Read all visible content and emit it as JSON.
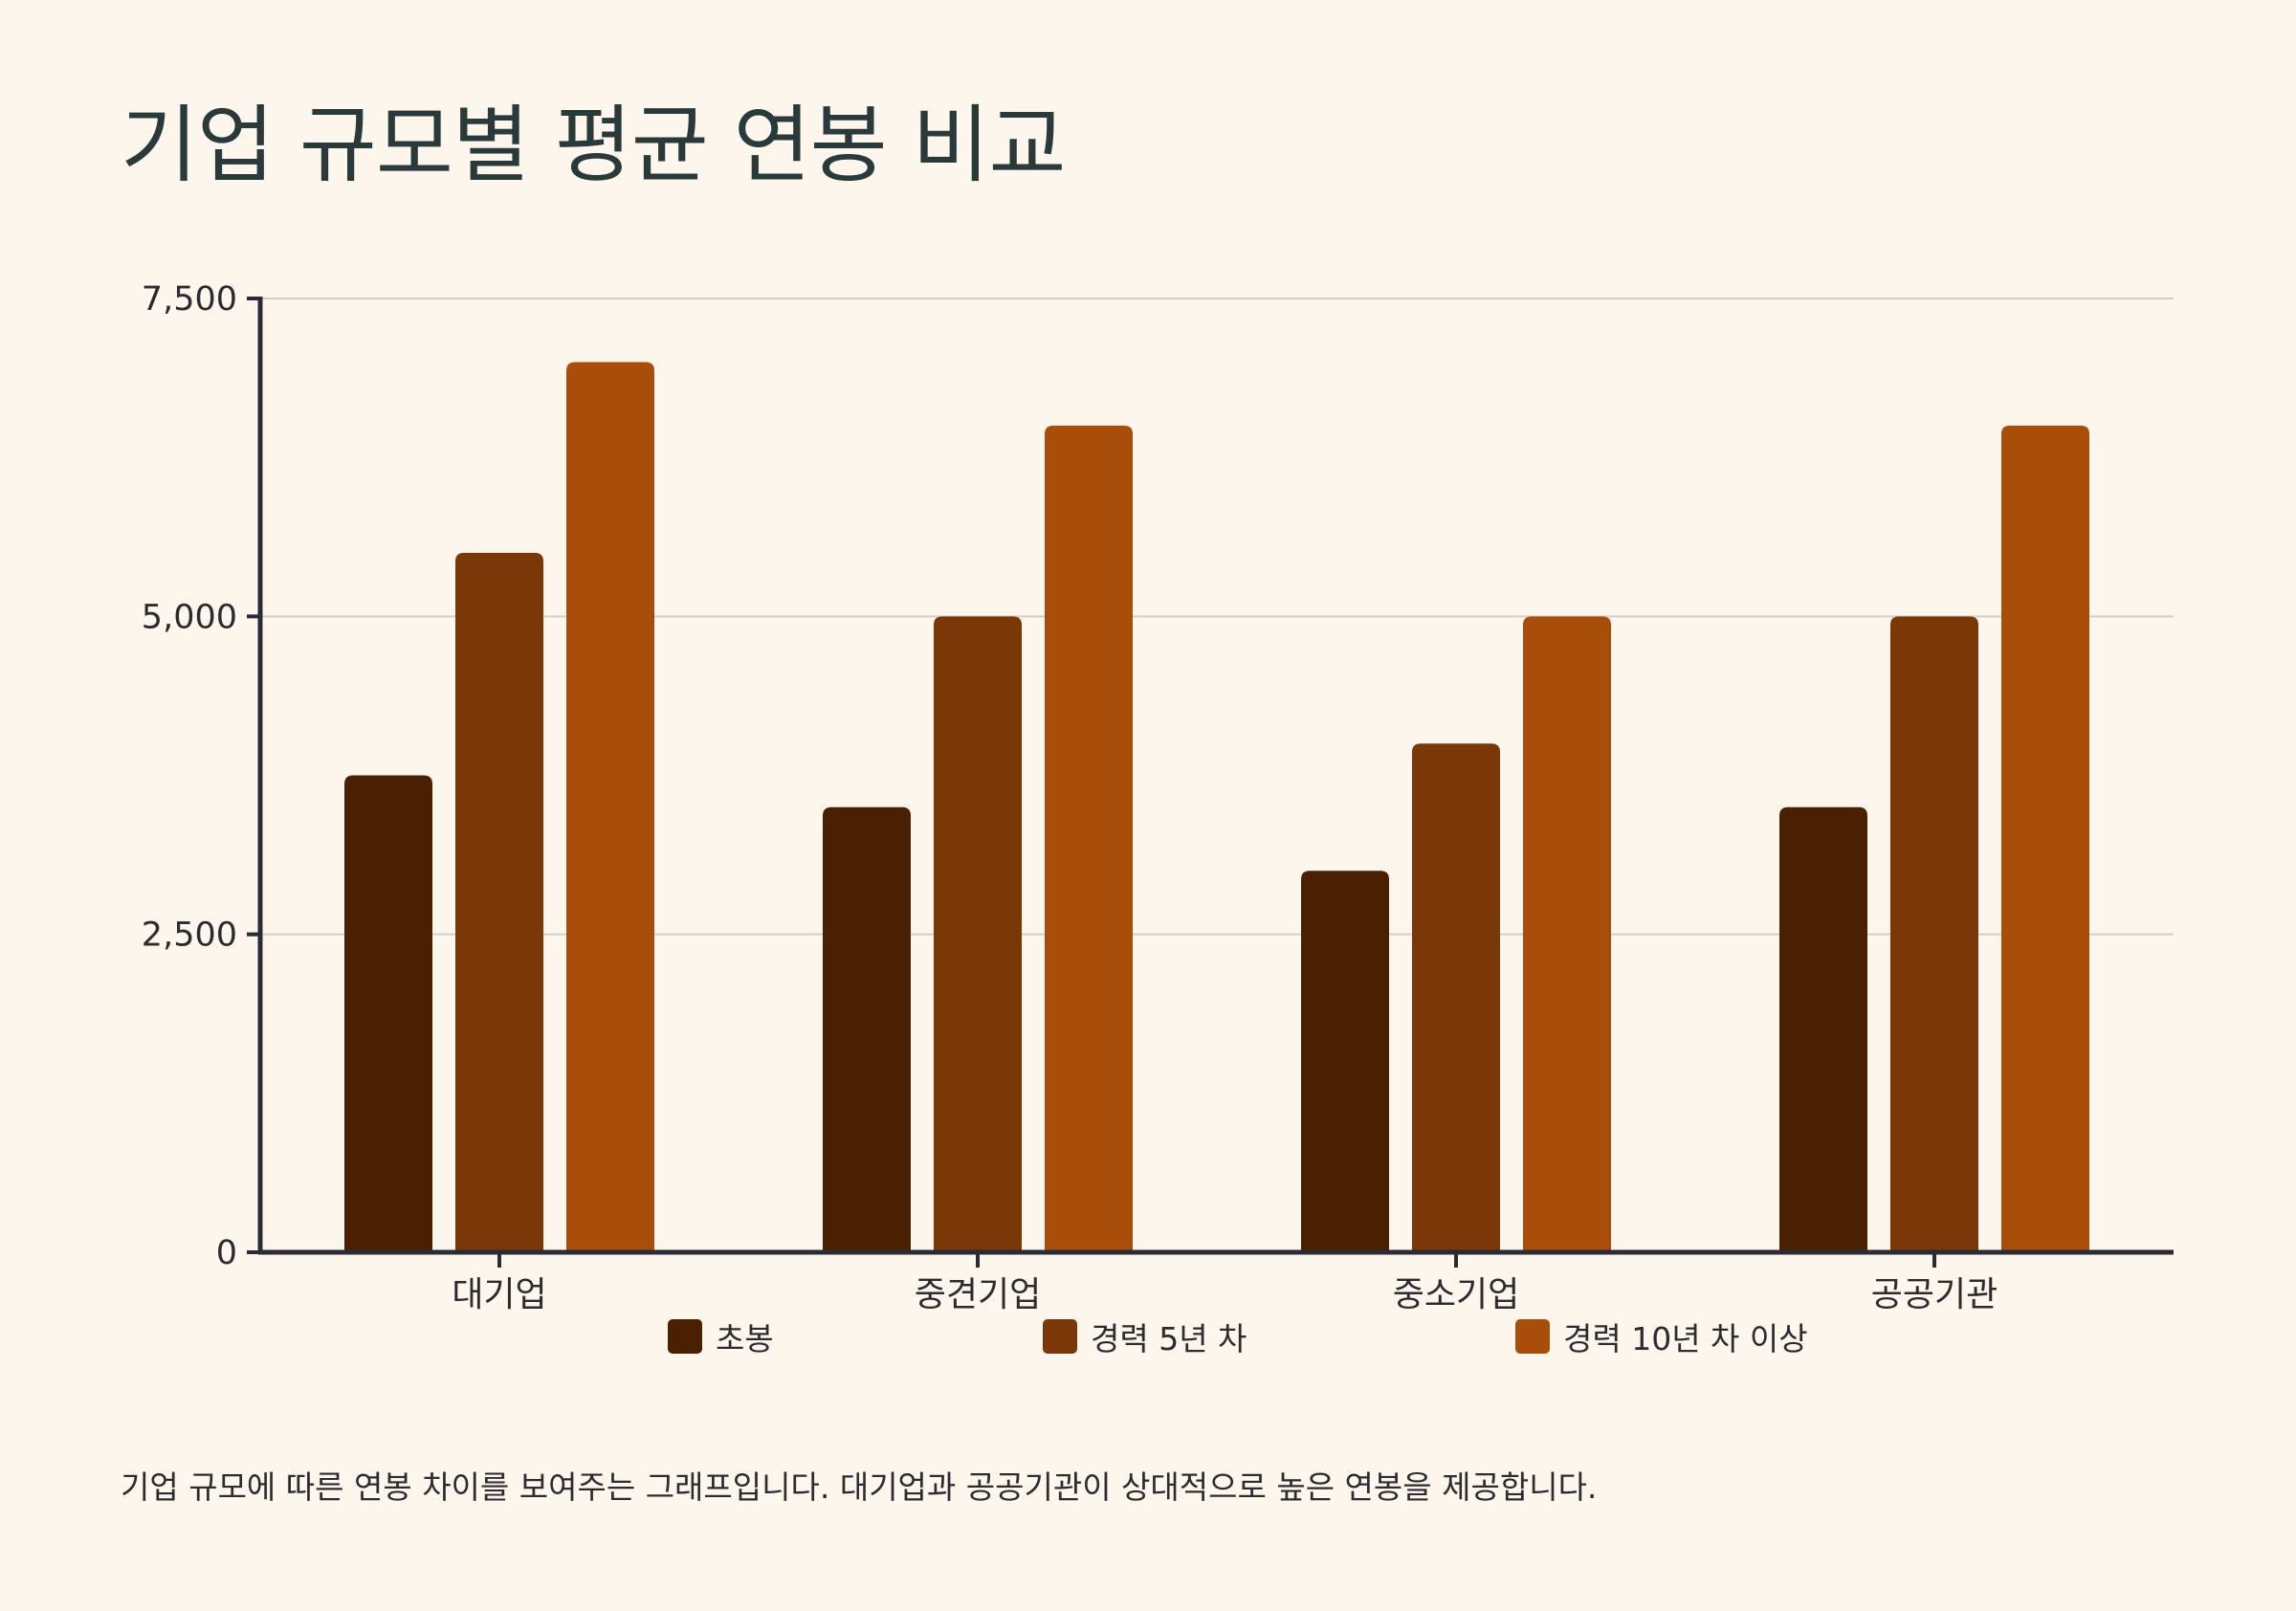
{
  "page": {
    "background": "#fdf6ec",
    "caption": "기업 규모에 따른 연봉 차이를 보여주는 그래프입니다. 대기업과 공공기관이 상대적으로 높은 연봉을 제공합니다."
  },
  "chart_data": {
    "type": "bar",
    "title": "기업 규모별 평균 연봉 비교",
    "xlabel": "",
    "ylabel": "",
    "categories": [
      "대기업",
      "중견기업",
      "중소기업",
      "공공기관"
    ],
    "series": [
      {
        "name": "초봉",
        "color": "#4a2000",
        "values": [
          3750,
          3500,
          3000,
          3500
        ]
      },
      {
        "name": "경력 5년 차",
        "color": "#7a3808",
        "values": [
          5500,
          5000,
          4000,
          5000
        ]
      },
      {
        "name": "경력 10년 차 이상",
        "color": "#a84e0a",
        "values": [
          7000,
          6500,
          5000,
          6500
        ]
      }
    ],
    "ylim": [
      0,
      7500
    ],
    "yticks": [
      0,
      2500,
      5000,
      7500
    ],
    "ytick_labels": [
      "0",
      "2,500",
      "5,000",
      "7,500"
    ],
    "grid": true,
    "legend_position": "bottom-center"
  }
}
